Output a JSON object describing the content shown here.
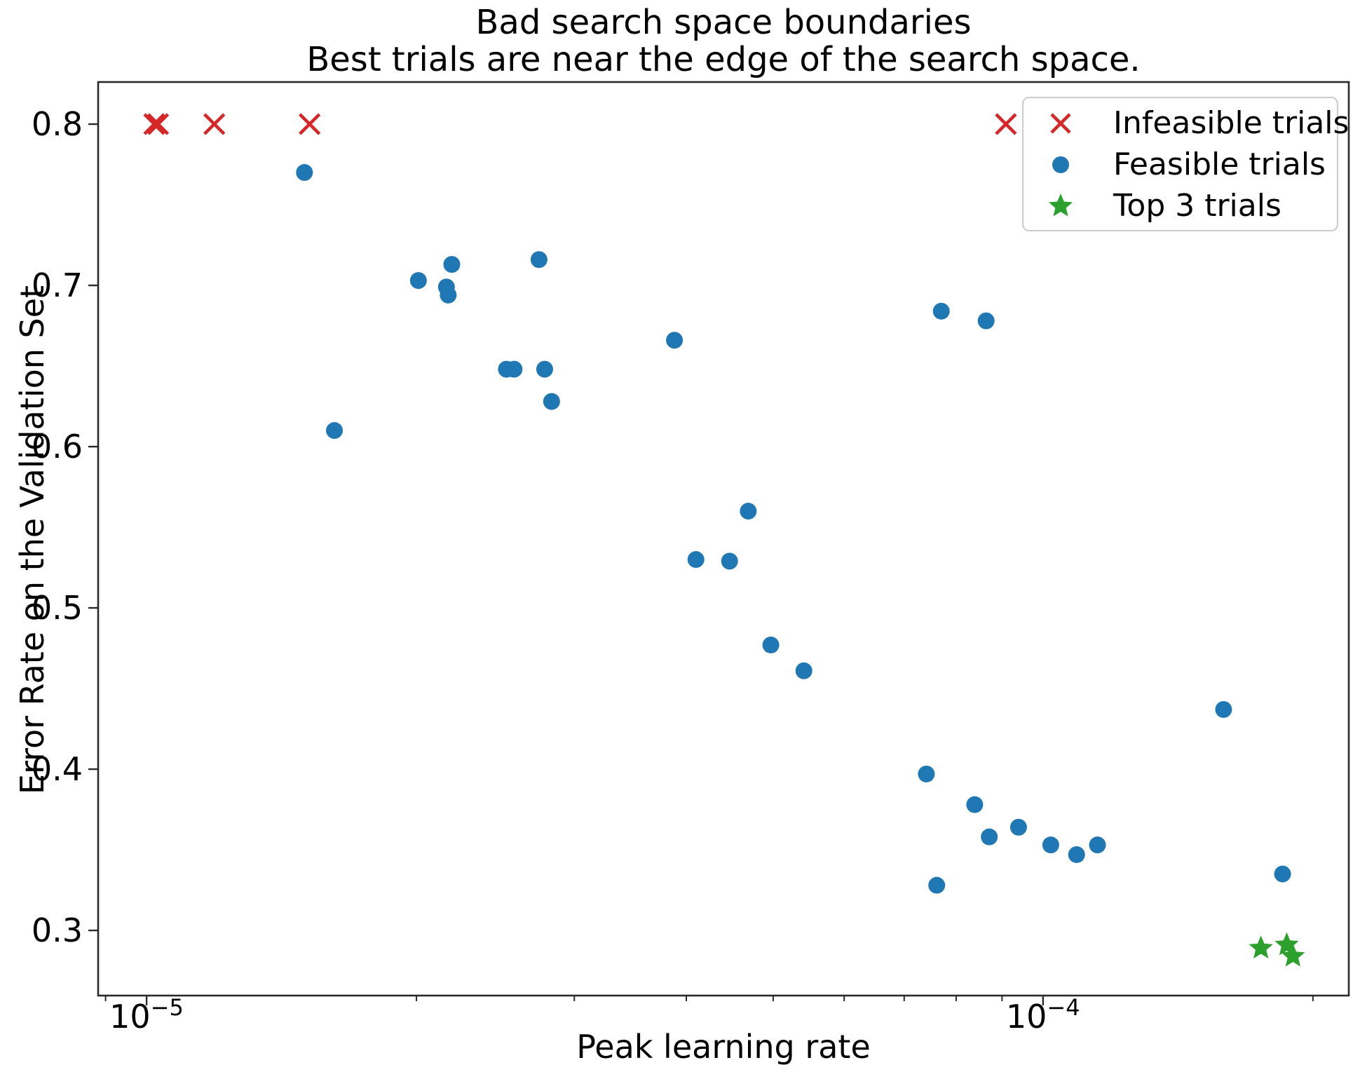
{
  "colors": {
    "red": "#d62728",
    "blue": "#1f77b4",
    "green": "#2ca02c",
    "axis": "#2a2a2a",
    "legend_border": "#cccccc"
  },
  "chart_data": {
    "type": "scatter",
    "title": "Bad search space boundaries",
    "subtitle": "Best trials are near the edge of the search space.",
    "xlabel": "Peak learning rate",
    "ylabel": "Error Rate on the Validation Set",
    "legend_position": "upper right",
    "grid": false,
    "x_axis": {
      "scale": "log",
      "lim": [
        8.83e-06,
        0.0002193
      ],
      "major_ticks": [
        {
          "value": 1e-05,
          "base": "10",
          "exp": "−5"
        },
        {
          "value": 0.0001,
          "base": "10",
          "exp": "−4"
        }
      ],
      "minor_ticks": [
        9e-06,
        2e-05,
        3e-05,
        4e-05,
        5e-05,
        6e-05,
        7e-05,
        8e-05,
        9e-05,
        0.0002
      ]
    },
    "y_axis": {
      "scale": "linear",
      "lim": [
        0.2596,
        0.8261
      ],
      "ticks": [
        {
          "value": 0.8,
          "label": "0.8"
        },
        {
          "value": 0.7,
          "label": "0.7"
        },
        {
          "value": 0.6,
          "label": "0.6"
        },
        {
          "value": 0.5,
          "label": "0.5"
        },
        {
          "value": 0.4,
          "label": "0.4"
        },
        {
          "value": 0.3,
          "label": "0.3"
        }
      ]
    },
    "series": [
      {
        "name": "Infeasible trials",
        "marker": "x",
        "color": "#d62728",
        "points": [
          [
            1.02e-05,
            0.8
          ],
          [
            1.03e-05,
            0.8
          ],
          [
            1.19e-05,
            0.8
          ],
          [
            1.52e-05,
            0.8
          ],
          [
            9.09e-05,
            0.8
          ]
        ]
      },
      {
        "name": "Feasible trials",
        "marker": "circle",
        "color": "#1f77b4",
        "points": [
          [
            1.5e-05,
            0.77
          ],
          [
            2.01e-05,
            0.703
          ],
          [
            2.19e-05,
            0.713
          ],
          [
            2.16e-05,
            0.699
          ],
          [
            2.17e-05,
            0.694
          ],
          [
            2.74e-05,
            0.716
          ],
          [
            2.52e-05,
            0.648
          ],
          [
            2.57e-05,
            0.648
          ],
          [
            2.78e-05,
            0.648
          ],
          [
            2.83e-05,
            0.628
          ],
          [
            1.62e-05,
            0.61
          ],
          [
            3.88e-05,
            0.666
          ],
          [
            7.7e-05,
            0.684
          ],
          [
            8.64e-05,
            0.678
          ],
          [
            4.69e-05,
            0.56
          ],
          [
            4.1e-05,
            0.53
          ],
          [
            4.47e-05,
            0.529
          ],
          [
            4.97e-05,
            0.477
          ],
          [
            5.41e-05,
            0.461
          ],
          [
            0.000159,
            0.437
          ],
          [
            7.41e-05,
            0.397
          ],
          [
            8.39e-05,
            0.378
          ],
          [
            8.71e-05,
            0.358
          ],
          [
            9.39e-05,
            0.364
          ],
          [
            0.000102,
            0.353
          ],
          [
            0.000109,
            0.347
          ],
          [
            0.000115,
            0.353
          ],
          [
            7.61e-05,
            0.328
          ],
          [
            0.000185,
            0.335
          ]
        ]
      },
      {
        "name": "Top 3 trials",
        "marker": "star",
        "color": "#2ca02c",
        "points": [
          [
            0.000175,
            0.289
          ],
          [
            0.000187,
            0.291
          ],
          [
            0.00019,
            0.284
          ]
        ]
      }
    ]
  }
}
